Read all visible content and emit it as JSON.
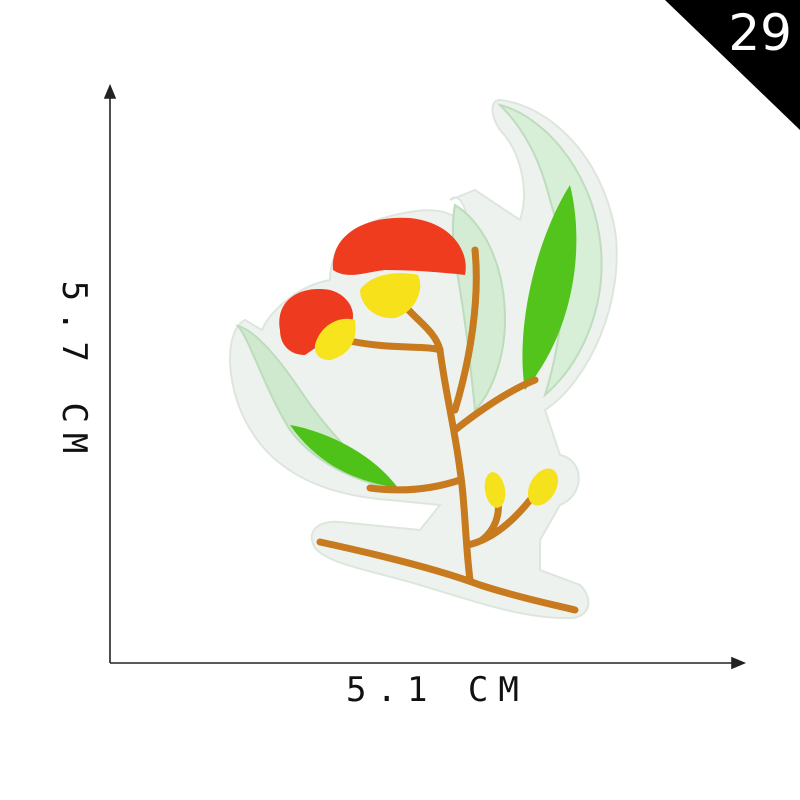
{
  "badge": {
    "number": "29",
    "color": "#000000"
  },
  "dimensions": {
    "width_label": "5.1 CM",
    "height_label": "5.7 CM"
  },
  "patch": {
    "description_icon": "embroidered-eucalyptus-flower-patch",
    "colors": {
      "backing": "#eef3ee",
      "flower_red": "#ee3b1f",
      "flower_yellow": "#f7e21a",
      "stem_brown": "#c9781f",
      "leaf_green": "#55c51c",
      "leaf_pale": "#d8eed8"
    }
  }
}
